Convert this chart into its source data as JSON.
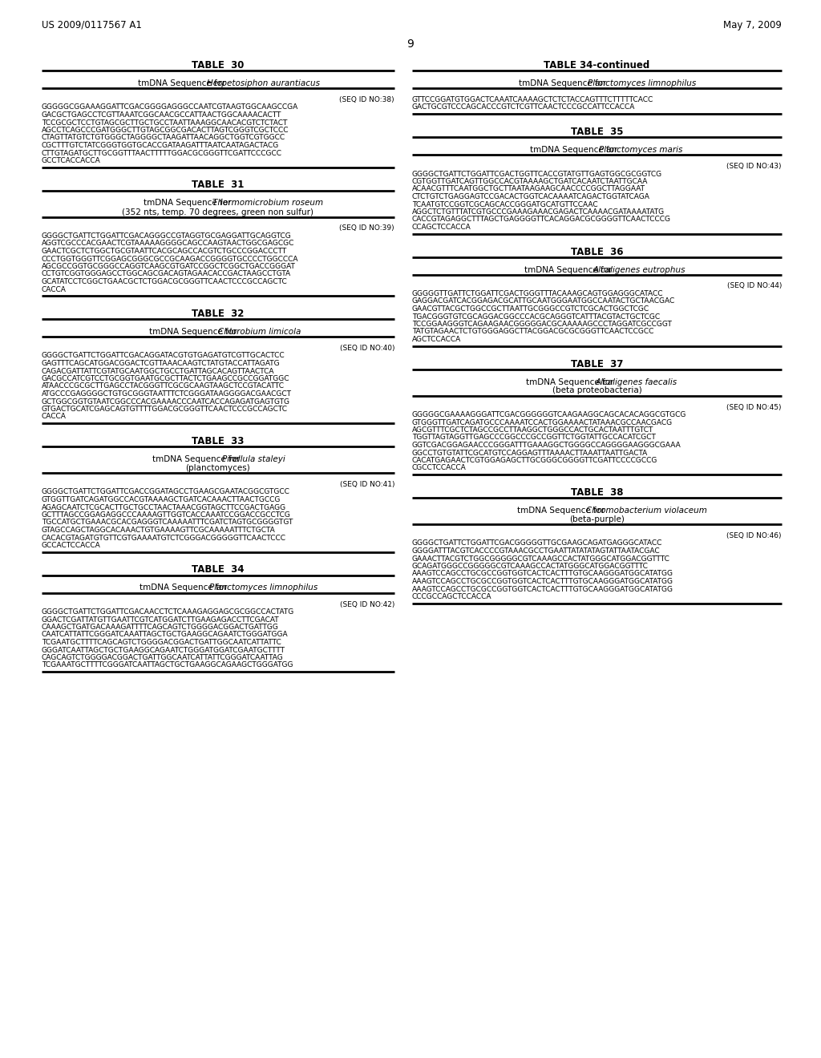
{
  "background_color": "#ffffff",
  "page_header_left": "US 2009/0117567 A1",
  "page_header_right": "May 7, 2009",
  "page_number": "9",
  "left_tables": [
    {
      "table_num": "TABLE  30",
      "subtitle": "tmDNA Sequence for Herpetosiphon aurantiacus",
      "subtitle_italic": "Herpetosiphon aurantiacus",
      "subtitle2": "",
      "seq_id": "(SEQ ID NO:38)",
      "sequence": "GGGGGCGGAAAGGATTCGACGGGGAGGGCCAATCGTAAGTGGCAAGCCGA\nGACGCTGAGCCTCGTTAAATCGGCAACGCCATTAACTGGCAAAACACTT\nTCCGCGCTCCTGTAGCGCTTGCTGCCTAATTAAAGGCAACACGTCTCTACT\nAGCCTCAGCCCGATGGGCTTGTAGCGGCGACACTTAGTCGGGTCGCTCCC\nCTAGTTATGTCTGTGGGCTAGGGGCTAAGATTAACAGGCTGGTCGTGGCC\nCGCTTTGTCTATCGGGTGGTGCACCGATAAGATTTAATCAATAGACTACG\nCTTGTAGATGCTTGCGGTTTAACTTTTTGGACGCGGGTTCGATTCCCGCC\nGCCTCACCACCA"
    },
    {
      "table_num": "TABLE  31",
      "subtitle": "tmDNA Sequence for Thermomicrobium roseum",
      "subtitle_italic": "Thermomicrobium roseum",
      "subtitle2": "(352 nts, temp. 70 degrees, green non sulfur)",
      "seq_id": "(SEQ ID NO:39)",
      "sequence": "GGGGCTGATTCTGGATTCGACAGGGCCGTAGGTGCGAGGATTGCAGGTCG\nAGGTCGCCCACGAACTCGTAAAAAGGGGCAGCCAAGTAACTGGCGAGCGC\nGAACTCGCTCTGGCTGCGTAATTCACGCAGCCACGTCTGCCCGGACCCTT\nCCCTGGTGGGTTCGGAGCGGGCGCCGCAAGACCGGGGTGCCCCTGGCCCA\nAGCGCCGGTGCGGGCCAGGTCAAGCGTGATCCGGCTCGGCTGACCGGGAT\nCCTGTCGGTGGGAGCCTGGCAGCGACAGTAGAACACCGACTAAGCCTGTA\nGCATATCCTCGGCTGAACGCTCTGGACGCGGGTTCAACTCCCGCCAGCTC\nCACCA"
    },
    {
      "table_num": "TABLE  32",
      "subtitle": "tmDNA Sequence for Chlorobium limicola",
      "subtitle_italic": "Chlorobium limicola",
      "subtitle2": "",
      "seq_id": "(SEQ ID NO:40)",
      "sequence": "GGGGCTGATTCTGGATTCGACAGGATACGTGTGAGATGTCGTTGCACTCC\nGAGTTTCAGCATGGACGGACTCGTTAAACAAGTCTATGTACCATTAGATG\nCAGACGATTATTCGTATGCAATGGCTGCCTGATTAGCACAGTTAACTCA\nGACGCCATCGTCCTGCGGTGAATGCGCTTACTCTGAAGCCGCCGGATGGC\nATAACCCGCGCTTGAGCCTACGGGTTCGCGCAAGTAAGCTCCGTACATTC\nATGCCCGAGGGGCTGTGCGGGTAATTTCTCGGGATAAGGGGACGAACGCT\nGCTGGCGGTGTAATCGGCCCACGAAAACCCAATCACCAGAGATGAGTGTG\nGTGACTGCATCGAGCAGTGTTTTGGACGCGGGTTCAACTCCCGCCAGCTC\nCACCA"
    },
    {
      "table_num": "TABLE  33",
      "subtitle": "tmDNA Sequence for Pirellula staleyi",
      "subtitle_italic": "Pirellula staleyi",
      "subtitle2": "(planctomyces)",
      "seq_id": "(SEQ ID NO:41)",
      "sequence": "GGGGCTGATTCTGGATTCGACCGGATAGCCTGAAGCGAATACGGCGTGCC\nGTGGTTGATCAGATGGCCACGTAAAAGCTGATCACAAACTTAACTGCCG\nAGAGCAATCTCGCACTTGCTGCCTAACTAAACGGTAGCTTCCGACTGAGG\nGCTTTAGCCGGAGAGGCCCAAAAGTTGGTCACCAAATCCGGACCGCCTCG\nTGCCATGCTGAAACGCACGAGGGTCAAAAATTTCGATCTAGTGCGGGGTGT\nGTAGCCAGCTAGGCACAAACTGTGAAAAGTTCGCAAAAATTTCTGCTA\nCACACGTAGATGTGTTCGTGAAAATGTCTCGGGACGGGGGTTCAACTCCC\nGCCACTCCACCA"
    },
    {
      "table_num": "TABLE  34",
      "subtitle": "tmDNA Sequence for Planctomyces limnophilus",
      "subtitle_italic": "Planctomyces limnophilus",
      "subtitle2": "",
      "seq_id": "(SEQ ID NO:42)",
      "sequence": "GGGGCTGATTCTGGATTCGACAACCTCTCAAAGAGGAGCGCGGCCACTATG\nGGACTCGATTATGTTGAATTCGTCATGGATCTTGAAGAGACCTTCGACAT\nCAAAGCTGATGACAAAGATTTTCAGCAGTCTGGGGACGGACTGATTGG\nCAATCATTATTCGGGATCAAATTAGCTGCTGAAGGCAGAATCTGGGATGGA\nTCGAATGCTTTTCAGCAGTCTGGGGACGGACTGATTGGCAATCATTATTC\nGGGATCAATTAGCTGCTGAAGGCAGAATCTGGGATGGATCGAATGCTTTT\nCAGCAGTCTGGGGACGGACTGATTGGCAATCATTATTCGGGATCAATTAG\nTCGAAATGCTTTTCGGGATCAATTAGCTGCTGAAGGCAGAAGCTGGGATGG"
    }
  ],
  "right_tables": [
    {
      "table_num": "TABLE 34-continued",
      "subtitle": "tmDNA Sequence for Planctomyces limnophilus",
      "subtitle_italic": "Planctomyces limnophilus",
      "subtitle2": "",
      "seq_id": "",
      "sequence": "GTTCCGGATGTGGACTCAAATCAAAAGCTCTCTACCAGTTTCTTTTTCACC\nGACTGCGTCCCAGCACCCGTCTCGTTCAACTCCCGCCATTCCACCA"
    },
    {
      "table_num": "TABLE  35",
      "subtitle": "tmDNA Sequence for Planctomyces maris",
      "subtitle_italic": "Planctomyces maris",
      "subtitle2": "",
      "seq_id": "(SEQ ID NO:43)",
      "sequence": "GGGGCTGATTCTGGATTCGACTGGTTCACCGTATGTTGAGTGGCGCGGTCG\nCGTGGTTGATCAGTTGGCCACGTAAAAGCTGATCACAATCTAATTGCAA\nACAACGTTTCAATGGCTGCTTAATAAGAAGCAACCCCGGCTTAGGAAT\nCTCTGTCTGAGGAGTCCGACACTGGTCACAAAATCAGACTGGTATCAGA\nTCAATGTCCGGTCGCAGCACCGGGATGCATGTTCCAAC\nAGGCTCTGTTTATCGTGCCCGAAAGAAACGAGACTCAAAACGATAAAATATG\nCACCGTAGAGGCTTTAGCTGAGGGGTTCACAGGACGCGGGGTTCAACTCCCG\nCCAGCTCCACCA"
    },
    {
      "table_num": "TABLE  36",
      "subtitle": "tmDNA Sequence for Alcaligenes eutrophus",
      "subtitle_italic": "Alcaligenes eutrophus",
      "subtitle2": "",
      "seq_id": "(SEQ ID NO:44)",
      "sequence": "GGGGGTTGATTCTGGATTCGACTGGGTTTACAAAGCAGTGGAGGGCATACC\nGAGGACGATCACGGAGACGCATTGCAATGGGAATGGCCAATACTGCTAACGAC\nGAACGTTACGCTGGCCGCTTAATTGCGGGCCGTCTCGCACTGGCTCGC\nTGACGGGTGTCGCAGGACGGCCCACGCAGGGTCATTTACGTACTGCTCGC\nTCCGGAAGGGTCAGAAGAACGGGGGACGCAAAAAGCCCTAGGATCGCCGGT\nTATGTAGAACTCTGTGGGAGGCTTACGGACGCGCGGGTTCAACTCCGCC\nAGCTCCACCA"
    },
    {
      "table_num": "TABLE  37",
      "subtitle": "tmDNA Sequence for Alcaligenes faecalis",
      "subtitle_italic": "Alcaligenes faecalis",
      "subtitle2": "(beta proteobacteria)",
      "seq_id": "(SEQ ID NO:45)",
      "sequence": "GGGGGCGAAAAGGGATTCGACGGGGGGTCAAGAAGGCAGCACACAGGCGTGCG\nGTGGGTTGATCAGATGCCCAAAATCCACTGGAAAACTATAAACGCCAACGACG\nAGCGTTTCGCTCTAGCCGCCTTAAGGCTGGGCCACTGCACTAATTTGTCT\nTGGTTAGTAGGTTGAGCCCGGCCCGCCGGTTCTGGTATTGCCACATCGCT\nGGTCGACGGAGAACCCGGGATTTGAAAGGCTGGGGCCAGGGGAAGGGCGAAA\nGGCCTGTGTATTCGCATGTCCAGGAGTTTAAAACTTAAATTAATTGACTA\nCACATGAGAACTCGTGGAGAGCTTGCGGGCGGGGTTCGATTCCCCGCCG\nCGCCTCCACCA"
    },
    {
      "table_num": "TABLE  38",
      "subtitle": "tmDNA Sequence for Chromobacterium violaceum",
      "subtitle_italic": "Chromobacterium violaceum",
      "subtitle2": "(beta-purple)",
      "seq_id": "(SEQ ID NO:46)",
      "sequence": "GGGGCTGATTCTGGATTCGACGGGGGTTGCGAAGCAGATGAGGGCATACC\nGGGGATTTACGTCACCCCGTAAACGCCTGAATTATATATAGTATTAATACGAC\nGAAACTTACGTCTGGCGGGGGCGTCAAAGCCACTATGGGCATGGACGGTTTC\nGCAGATGGGCCGGGGGCGTCAAAGCCACTATGGGCATGGACGGTTTC\nAAAGTCCAGCCTGCGCCGGTGGTCACTCACTTTGTGCAAGGGATGGCATATGG\nAAAGTCCAGCCTGCGCCGGTGGTCACTCACTTTGTGCAAGGGATGGCATATGG\nAAAGTCCAGCCTGCGCCGGTGGTCACTCACTTTGTGCAAGGGATGGCATATGG\nCCCGCCAGCTCCACCA"
    }
  ]
}
